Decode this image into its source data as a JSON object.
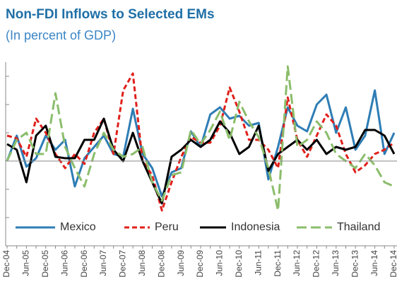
{
  "chart_data": {
    "type": "line",
    "title": "Non-FDI Inflows to Selected EMs",
    "subtitle": "(In percent of GDP)",
    "categories": [
      "Dec-04",
      null,
      "Jun-05",
      null,
      "Dec-05",
      null,
      "Jun-06",
      null,
      "Dec-06",
      null,
      "Jun-07",
      null,
      "Dec-07",
      null,
      "Jun-08",
      null,
      "Dec-08",
      null,
      "Jun-09",
      null,
      "Dec-09",
      null,
      "Jun-10",
      null,
      "Dec-10",
      null,
      "Jun-11",
      null,
      "Dec-11",
      null,
      "Jun-12",
      null,
      "Dec-12",
      null,
      "Jun-13",
      null,
      "Dec-13",
      null,
      "Jun-14",
      null,
      "Dec-14"
    ],
    "series": [
      {
        "name": "Mexico",
        "color": "#2e7db5",
        "dash": "solid",
        "values": [
          0,
          1.8,
          -0.4,
          0.2,
          1.8,
          0.8,
          1.5,
          -1.8,
          0.2,
          1,
          1.8,
          0.5,
          0.3,
          3.7,
          0.5,
          -0.5,
          -2.5,
          -0.8,
          -0.5,
          2.1,
          1,
          3.3,
          3.8,
          3,
          3.2,
          2.5,
          2.7,
          -1.3,
          1,
          3.8,
          2.5,
          2.1,
          4,
          4.7,
          2,
          3.8,
          0.8,
          1.8,
          5,
          0.5,
          2
        ]
      },
      {
        "name": "Peru",
        "color": "#e0201b",
        "dash": "dashed",
        "values": [
          1.8,
          1.6,
          0.3,
          3,
          2,
          0.5,
          -0.5,
          0.5,
          -0.2,
          2,
          3,
          0.5,
          5,
          6.2,
          0,
          -1,
          -3.5,
          -1.5,
          0.3,
          1.7,
          1.3,
          1.3,
          2.5,
          5.2,
          3.5,
          1.5,
          1.5,
          0.8,
          -0.5,
          4.5,
          1.5,
          0.3,
          1.8,
          3.3,
          2.5,
          0.5,
          -0.8,
          -0.3,
          0.5,
          0.8,
          1.3
        ]
      },
      {
        "name": "Indonesia",
        "color": "#000000",
        "dash": "solid",
        "values": [
          1.2,
          0.8,
          -1.5,
          1.8,
          2.5,
          0.3,
          0.2,
          0.2,
          1.5,
          1.5,
          3,
          0.8,
          0,
          2,
          0,
          -1.5,
          -3,
          0.3,
          0.8,
          1.5,
          1,
          1.5,
          2.8,
          2,
          0.5,
          1,
          2.5,
          -0.7,
          0.5,
          1,
          1.5,
          0.8,
          1.5,
          0.5,
          1,
          0.8,
          1,
          2.2,
          2.2,
          1.8,
          0.5
        ]
      },
      {
        "name": "Thailand",
        "color": "#8bbd6b",
        "dash": "long-dashed",
        "values": [
          0,
          1.5,
          2,
          0.5,
          0.5,
          4.8,
          1,
          -0.5,
          -1.8,
          0.5,
          2,
          0.8,
          0.3,
          0.5,
          1,
          -1.5,
          -2.8,
          -1,
          -0.8,
          2.2,
          1.2,
          2.2,
          3.5,
          1.5,
          4.2,
          2.8,
          1.7,
          -0.5,
          -3.5,
          6.7,
          1,
          1.5,
          2.8,
          2,
          0.5,
          0,
          -0.5,
          0.5,
          -0.3,
          -1.5,
          -1.8
        ]
      }
    ],
    "ylim": [
      -6,
      7
    ],
    "yticks": [
      -4,
      -2,
      0,
      2,
      4,
      6
    ]
  }
}
